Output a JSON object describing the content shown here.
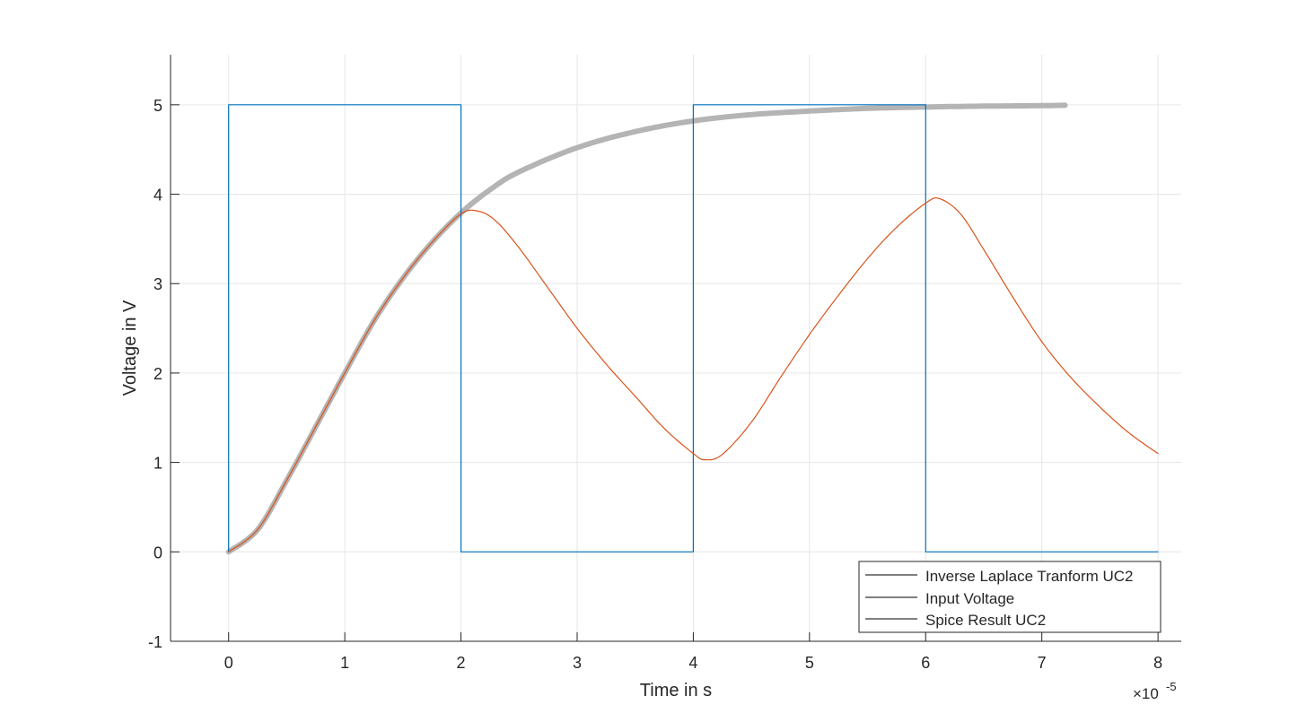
{
  "chart_data": {
    "type": "line",
    "xlabel": "Time in s",
    "ylabel": "Voltage in V",
    "x_exponent_label": "×10",
    "x_exponent_power": "-5",
    "xlim": [
      -0.5,
      8.2
    ],
    "ylim": [
      -1,
      5.56
    ],
    "x_ticks": [
      0,
      1,
      2,
      3,
      4,
      5,
      6,
      7,
      8
    ],
    "y_ticks": [
      -1,
      0,
      1,
      2,
      3,
      4,
      5
    ],
    "x_tick_labels": [
      "0",
      "1",
      "2",
      "3",
      "4",
      "5",
      "6",
      "7",
      "8"
    ],
    "y_tick_labels": [
      "-1",
      "0",
      "1",
      "2",
      "3",
      "4",
      "5"
    ],
    "grid": true,
    "legend_position": "bottom-right",
    "legend_entries": [
      "Inverse Laplace Tranform UC2",
      "Input Voltage",
      "Spice Result UC2"
    ],
    "series": [
      {
        "name": "Inverse Laplace Tranform UC2",
        "color": "#b4b4b4",
        "x": [
          0,
          0.25,
          0.5,
          0.75,
          1.0,
          1.25,
          1.5,
          1.75,
          2.0,
          2.25,
          2.5,
          3.0,
          3.5,
          4.0,
          4.5,
          5.0,
          5.5,
          6.0,
          6.5,
          7.0,
          7.2
        ],
        "y": [
          0,
          0.25,
          0.8,
          1.4,
          2.0,
          2.58,
          3.06,
          3.46,
          3.79,
          4.05,
          4.25,
          4.52,
          4.7,
          4.82,
          4.89,
          4.93,
          4.96,
          4.975,
          4.985,
          4.99,
          4.995
        ]
      },
      {
        "name": "Input Voltage",
        "color": "#0072bd",
        "x": [
          0,
          0,
          2,
          2,
          4,
          4,
          6,
          6,
          8
        ],
        "y": [
          0,
          5,
          5,
          0,
          0,
          5,
          5,
          0,
          0
        ]
      },
      {
        "name": "Spice Result UC2",
        "color": "#d95319",
        "x": [
          0,
          0.25,
          0.5,
          0.75,
          1.0,
          1.25,
          1.5,
          1.75,
          2.0,
          2.15,
          2.3,
          2.5,
          2.75,
          3.0,
          3.25,
          3.5,
          3.75,
          4.0,
          4.1,
          4.25,
          4.5,
          4.75,
          5.0,
          5.25,
          5.5,
          5.75,
          6.0,
          6.12,
          6.3,
          6.5,
          6.75,
          7.0,
          7.25,
          7.5,
          7.75,
          8.0
        ],
        "y": [
          0,
          0.25,
          0.8,
          1.4,
          2.0,
          2.58,
          3.06,
          3.46,
          3.78,
          3.81,
          3.7,
          3.4,
          2.95,
          2.5,
          2.1,
          1.74,
          1.38,
          1.1,
          1.03,
          1.09,
          1.45,
          1.95,
          2.43,
          2.87,
          3.28,
          3.63,
          3.9,
          3.95,
          3.78,
          3.38,
          2.85,
          2.35,
          1.95,
          1.62,
          1.33,
          1.1
        ]
      }
    ]
  }
}
